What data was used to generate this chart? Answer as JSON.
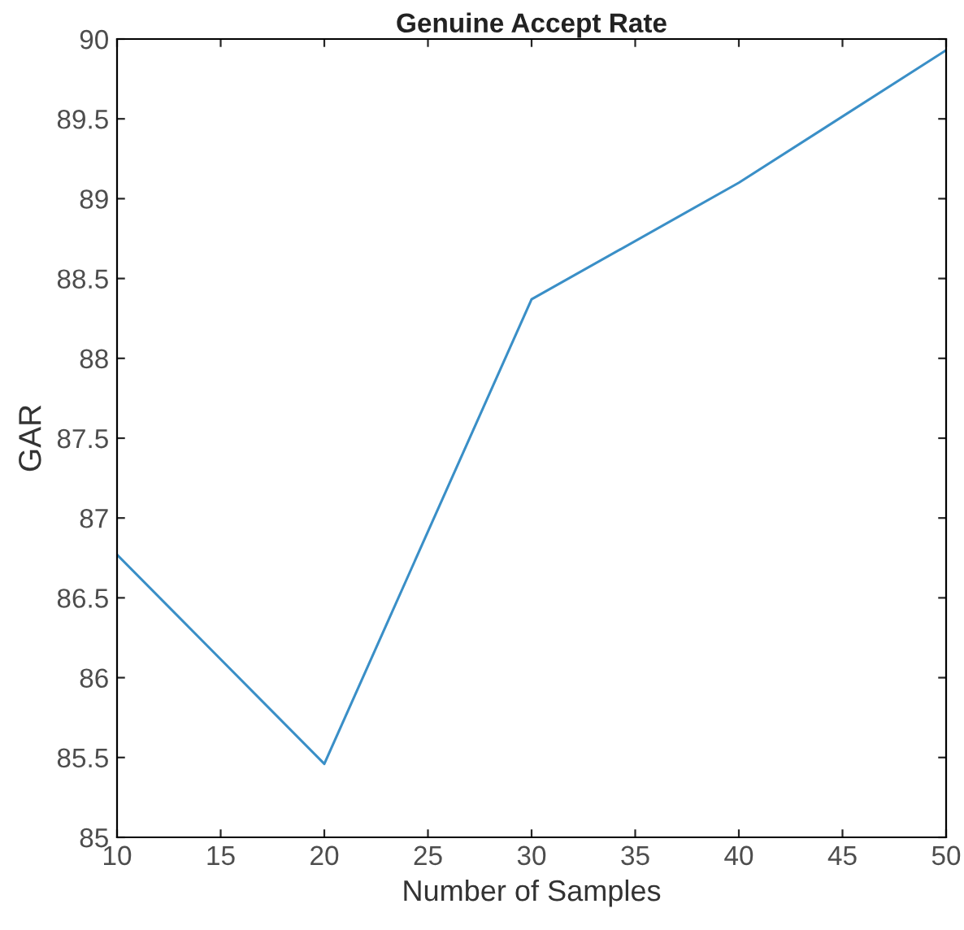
{
  "chart_data": {
    "type": "line",
    "title": "Genuine Accept Rate",
    "xlabel": "Number of Samples",
    "ylabel": "GAR",
    "x": [
      10,
      20,
      30,
      40,
      50
    ],
    "series": [
      {
        "color": "#3a8fc7",
        "values": [
          86.77,
          85.46,
          88.37,
          89.1,
          89.93
        ]
      }
    ],
    "xlim": [
      10,
      50
    ],
    "xticks": [
      10,
      15,
      20,
      25,
      30,
      35,
      40,
      45,
      50
    ],
    "ylim": [
      85,
      90
    ],
    "yticks": [
      85,
      85.5,
      86,
      86.5,
      87,
      87.5,
      88,
      88.5,
      89,
      89.5,
      90
    ],
    "grid": false
  }
}
